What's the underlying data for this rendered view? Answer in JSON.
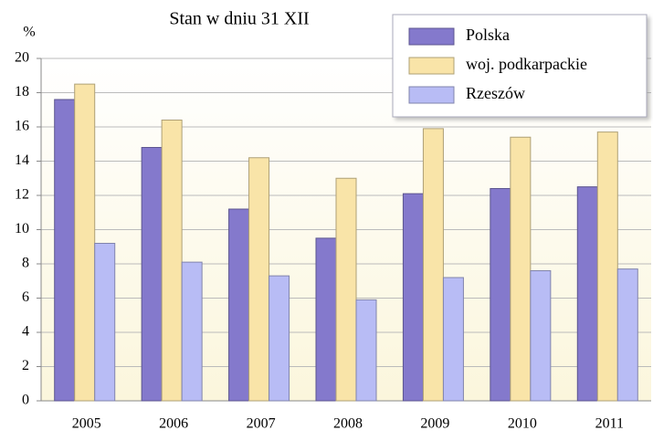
{
  "chart_data": {
    "type": "bar",
    "title": "Stan w dniu 31 XII",
    "y_label": "%",
    "categories": [
      "2005",
      "2006",
      "2007",
      "2008",
      "2009",
      "2010",
      "2011"
    ],
    "series": [
      {
        "name": "Polska",
        "color": "#8479cc",
        "values": [
          17.6,
          14.8,
          11.2,
          9.5,
          12.1,
          12.4,
          12.5
        ]
      },
      {
        "name": "woj. podkarpackie",
        "color": "#f9e4a8",
        "values": [
          18.5,
          16.4,
          14.2,
          13.0,
          15.9,
          15.4,
          15.7
        ]
      },
      {
        "name": "Rzeszów",
        "color": "#b8bcf5",
        "values": [
          9.2,
          8.1,
          7.3,
          5.9,
          7.2,
          7.6,
          7.7
        ]
      }
    ],
    "ylim": [
      0,
      20
    ],
    "yticks": [
      0,
      2,
      4,
      6,
      8,
      10,
      12,
      14,
      16,
      18,
      20
    ],
    "grid": true,
    "legend": "upper right"
  }
}
